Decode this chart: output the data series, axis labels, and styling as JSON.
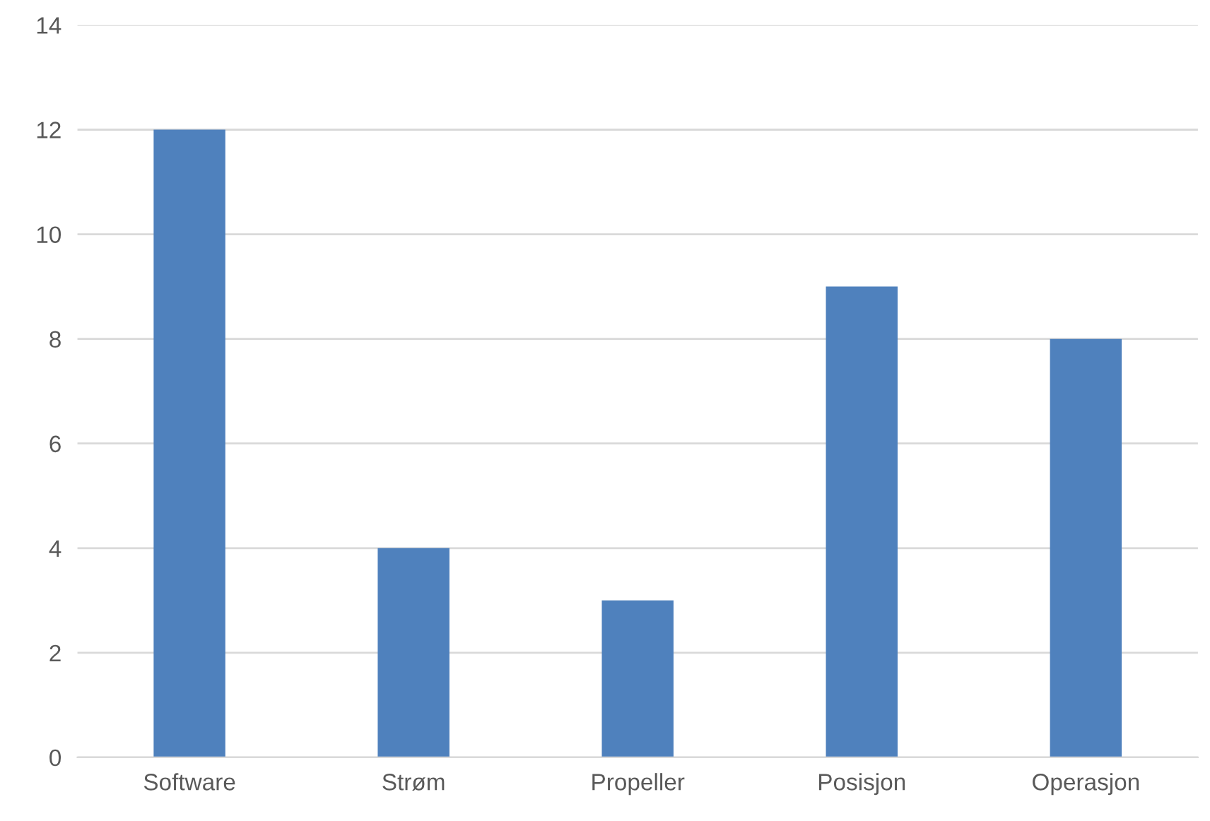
{
  "chart_data": {
    "type": "bar",
    "categories": [
      "Software",
      "Strøm",
      "Propeller",
      "Posisjon",
      "Operasjon"
    ],
    "values": [
      12,
      4,
      3,
      9,
      8
    ],
    "color": "#4f81bd",
    "ylim": [
      0,
      14
    ],
    "yticks": [
      0,
      2,
      4,
      6,
      8,
      10,
      12,
      14
    ],
    "grid": "y",
    "legend": false
  }
}
